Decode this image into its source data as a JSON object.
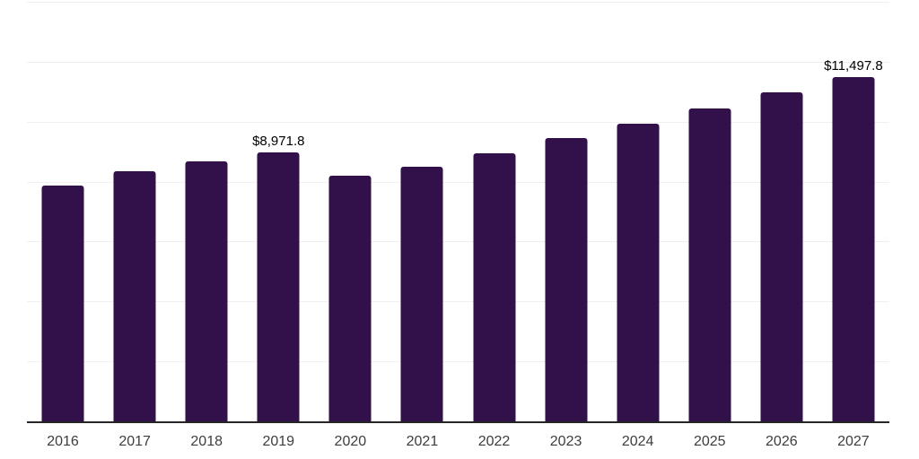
{
  "colors": {
    "background": "#ffffff",
    "bar": "#32114B",
    "gridline": "#f0f0f0",
    "axis_line": "#262626",
    "data_label_text": "#000000",
    "tick_label_text": "#3d3d3d"
  },
  "chart_data": {
    "type": "bar",
    "categories": [
      "2016",
      "2017",
      "2018",
      "2019",
      "2020",
      "2021",
      "2022",
      "2023",
      "2024",
      "2025",
      "2026",
      "2027"
    ],
    "values": [
      7880,
      8360,
      8670,
      8971.8,
      8200,
      8500,
      8930,
      9440,
      9920,
      10430,
      10990,
      11497.8
    ],
    "data_labels": [
      null,
      null,
      null,
      "$8,971.8",
      null,
      null,
      null,
      null,
      null,
      null,
      null,
      "$11,497.8"
    ],
    "title": "",
    "xlabel": "",
    "ylabel": "",
    "ylim": [
      0,
      14000
    ],
    "grid_step": 2000,
    "grid": true,
    "y_tick_labels_visible": false,
    "legend": false
  }
}
